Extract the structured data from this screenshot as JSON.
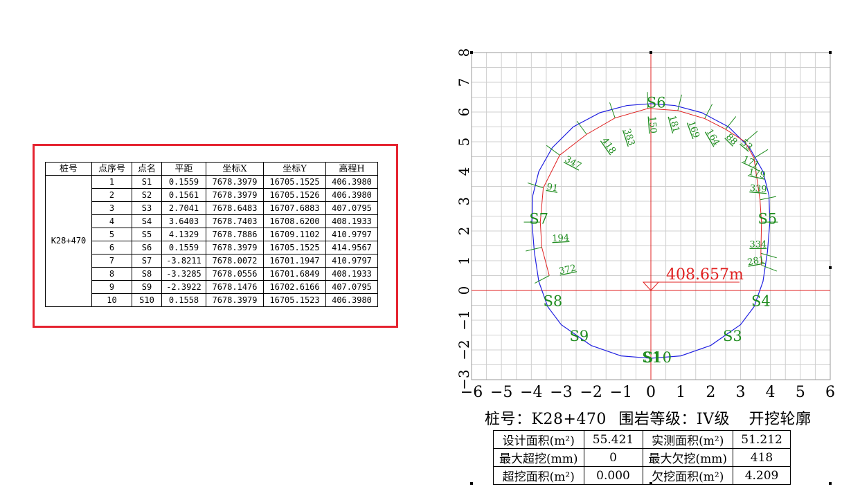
{
  "point_table": {
    "headers": [
      "桩号",
      "点序号",
      "点名",
      "平距",
      "坐标X",
      "坐标Y",
      "高程H"
    ],
    "station": "K28+470",
    "rows": [
      [
        "1",
        "S1",
        "0.1559",
        "7678.3979",
        "16705.1525",
        "406.3980"
      ],
      [
        "2",
        "S2",
        "0.1561",
        "7678.3979",
        "16705.1526",
        "406.3980"
      ],
      [
        "3",
        "S3",
        "2.7041",
        "7678.6483",
        "16707.6883",
        "407.0795"
      ],
      [
        "4",
        "S4",
        "3.6403",
        "7678.7403",
        "16708.6200",
        "408.1933"
      ],
      [
        "5",
        "S5",
        "4.1329",
        "7678.7886",
        "16709.1102",
        "410.9797"
      ],
      [
        "6",
        "S6",
        "0.1559",
        "7678.3979",
        "16705.1525",
        "414.9567"
      ],
      [
        "7",
        "S7",
        "-3.8211",
        "7678.0072",
        "16701.1947",
        "410.9797"
      ],
      [
        "8",
        "S8",
        "-3.3285",
        "7678.0556",
        "16701.6849",
        "408.1933"
      ],
      [
        "9",
        "S9",
        "-2.3922",
        "7678.1476",
        "16702.6166",
        "407.0795"
      ],
      [
        "10",
        "S10",
        "0.1558",
        "7678.3979",
        "16705.1523",
        "406.3980"
      ]
    ]
  },
  "profile": {
    "x_ticks": [
      "−6",
      "−5",
      "−4",
      "−3",
      "−2",
      "−1",
      "0",
      "1",
      "2",
      "3",
      "4",
      "5",
      "6"
    ],
    "y_ticks": [
      "−3",
      "−2",
      "−1",
      "0",
      "1",
      "2",
      "3",
      "4",
      "5",
      "6",
      "7",
      "8"
    ],
    "x_range": [
      -6,
      6
    ],
    "y_range": [
      -3,
      8
    ],
    "elevation_label": "408.657m",
    "design_color": "#2020e0",
    "measured_color": "#e02020",
    "annotation_color": "#1e8c1e",
    "point_labels": [
      {
        "text": "S6",
        "x": 0.18,
        "y": 6.15
      },
      {
        "text": "S5",
        "x": 3.9,
        "y": 2.25
      },
      {
        "text": "S7",
        "x": -3.75,
        "y": 2.25
      },
      {
        "text": "S4",
        "x": 3.68,
        "y": -0.52
      },
      {
        "text": "S8",
        "x": -3.28,
        "y": -0.52
      },
      {
        "text": "S3",
        "x": 2.73,
        "y": -1.7
      },
      {
        "text": "S9",
        "x": -2.4,
        "y": -1.7
      },
      {
        "text": "S10",
        "x": 0.22,
        "y": -2.42
      },
      {
        "text": "S1",
        "x": 0.02,
        "y": -2.42
      }
    ],
    "design_contour": [
      [
        0,
        -2.28
      ],
      [
        1,
        -2.2
      ],
      [
        2,
        -1.85
      ],
      [
        3,
        -1.15
      ],
      [
        3.45,
        -0.55
      ],
      [
        3.75,
        0.3
      ],
      [
        3.9,
        1.3
      ],
      [
        3.98,
        2.3
      ],
      [
        3.95,
        3.2
      ],
      [
        3.75,
        4.0
      ],
      [
        3.3,
        4.8
      ],
      [
        2.6,
        5.5
      ],
      [
        1.7,
        5.98
      ],
      [
        0.8,
        6.22
      ],
      [
        0,
        6.28
      ],
      [
        -0.8,
        6.22
      ],
      [
        -1.7,
        5.98
      ],
      [
        -2.6,
        5.5
      ],
      [
        -3.3,
        4.8
      ],
      [
        -3.75,
        4.0
      ],
      [
        -3.95,
        3.2
      ],
      [
        -3.98,
        2.3
      ],
      [
        -3.9,
        1.3
      ],
      [
        -3.75,
        0.3
      ],
      [
        -3.45,
        -0.55
      ],
      [
        -3,
        -1.15
      ],
      [
        -2,
        -1.85
      ],
      [
        -1,
        -2.2
      ],
      [
        0,
        -2.28
      ]
    ],
    "measured_points": [
      [
        -3.4,
        0.5
      ],
      [
        -3.65,
        1.45
      ],
      [
        -3.7,
        2.3
      ],
      [
        -3.6,
        3.45
      ],
      [
        -3.05,
        4.55
      ],
      [
        -2.15,
        5.25
      ],
      [
        -1.2,
        5.8
      ],
      [
        -0.1,
        6.12
      ],
      [
        0.9,
        6.05
      ],
      [
        1.8,
        5.78
      ],
      [
        2.5,
        5.42
      ],
      [
        3.15,
        5.0
      ],
      [
        3.45,
        4.45
      ],
      [
        3.65,
        3.05
      ],
      [
        3.7,
        2.3
      ],
      [
        3.68,
        1.25
      ],
      [
        3.7,
        0.85
      ]
    ],
    "deviation_labels": [
      {
        "text": "372",
        "x": -3.05,
        "y": 0.55,
        "angle": -12
      },
      {
        "text": "194",
        "x": -3.3,
        "y": 1.65,
        "angle": -3
      },
      {
        "text": "91",
        "x": -3.5,
        "y": 3.4,
        "angle": 10
      },
      {
        "text": "347",
        "x": -2.9,
        "y": 4.35,
        "angle": 28
      },
      {
        "text": "418",
        "x": -1.65,
        "y": 5.05,
        "angle": 55
      },
      {
        "text": "383",
        "x": -0.9,
        "y": 5.4,
        "angle": 72
      },
      {
        "text": "150",
        "x": -0.05,
        "y": 5.85,
        "angle": 86
      },
      {
        "text": "181",
        "x": 0.62,
        "y": 5.85,
        "angle": 75
      },
      {
        "text": "169",
        "x": 1.25,
        "y": 5.65,
        "angle": 70
      },
      {
        "text": "164",
        "x": 1.85,
        "y": 5.35,
        "angle": 60
      },
      {
        "text": "88",
        "x": 2.5,
        "y": 5.15,
        "angle": 45
      },
      {
        "text": "53",
        "x": 3.0,
        "y": 4.95,
        "angle": 40
      },
      {
        "text": "171",
        "x": 3.05,
        "y": 4.35,
        "angle": 25
      },
      {
        "text": "179",
        "x": 3.25,
        "y": 3.9,
        "angle": 12
      },
      {
        "text": "339",
        "x": 3.3,
        "y": 3.35,
        "angle": 5
      },
      {
        "text": "334",
        "x": 3.3,
        "y": 1.45,
        "angle": 0
      },
      {
        "text": "281",
        "x": 3.25,
        "y": 0.85,
        "angle": -10
      }
    ]
  },
  "caption": {
    "station_label": "桩号：",
    "station": "K28+470",
    "grade_label": "围岩等级：",
    "grade": "IV级",
    "type": "开挖轮廓"
  },
  "summary": {
    "rows": [
      [
        "设计面积(m²)",
        "55.421",
        "实测面积(m²)",
        "51.212"
      ],
      [
        "最大超挖(mm)",
        "0",
        "最大欠挖(mm)",
        "418"
      ],
      [
        "超挖面积(m²)",
        "0.000",
        "欠挖面积(m²)",
        "4.209"
      ]
    ]
  }
}
